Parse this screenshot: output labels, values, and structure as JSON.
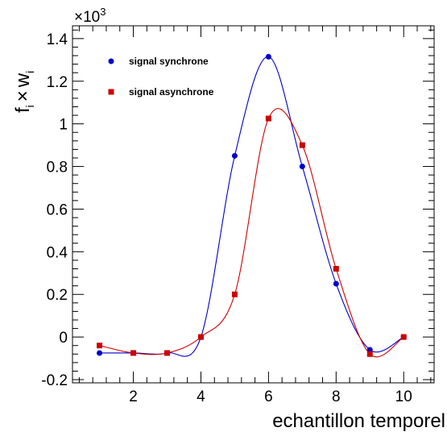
{
  "chart_data": {
    "type": "line",
    "xlabel": "echantillon temporel",
    "ylabel_main": "f",
    "ylabel_sub1": "i",
    "ylabel_times": "×",
    "ylabel_w": "w",
    "ylabel_sub2": "i",
    "y_multiplier_base": "×10",
    "y_multiplier_exp": "3",
    "xlim": [
      0.2,
      10.9
    ],
    "ylim": [
      -0.215,
      1.46
    ],
    "x_ticks": [
      2,
      4,
      6,
      8,
      10
    ],
    "x_tick_labels": [
      "2",
      "4",
      "6",
      "8",
      "10"
    ],
    "y_ticks": [
      -0.2,
      0,
      0.2,
      0.4,
      0.6,
      0.8,
      1,
      1.2,
      1.4
    ],
    "y_tick_labels": [
      "-0.2",
      "0",
      "0.2",
      "0.4",
      "0.6",
      "0.8",
      "1",
      "1.2",
      "1.4"
    ],
    "grid": false,
    "legend_position": "top-left",
    "series": [
      {
        "name": "signal synchrone",
        "marker": "circle",
        "color": "#0000cc",
        "x": [
          1,
          2,
          3,
          4,
          5,
          6,
          7,
          8,
          9,
          10
        ],
        "y": [
          -0.075,
          -0.075,
          -0.075,
          0.0,
          0.85,
          1.315,
          0.8,
          0.25,
          -0.06,
          0.0
        ]
      },
      {
        "name": "signal asynchrone",
        "marker": "square",
        "color": "#cc0000",
        "x": [
          1,
          2,
          3,
          4,
          5,
          6,
          7,
          8,
          9,
          10
        ],
        "y": [
          -0.04,
          -0.075,
          -0.075,
          0.0,
          0.2,
          1.025,
          0.9,
          0.32,
          -0.08,
          0.0
        ]
      }
    ]
  }
}
